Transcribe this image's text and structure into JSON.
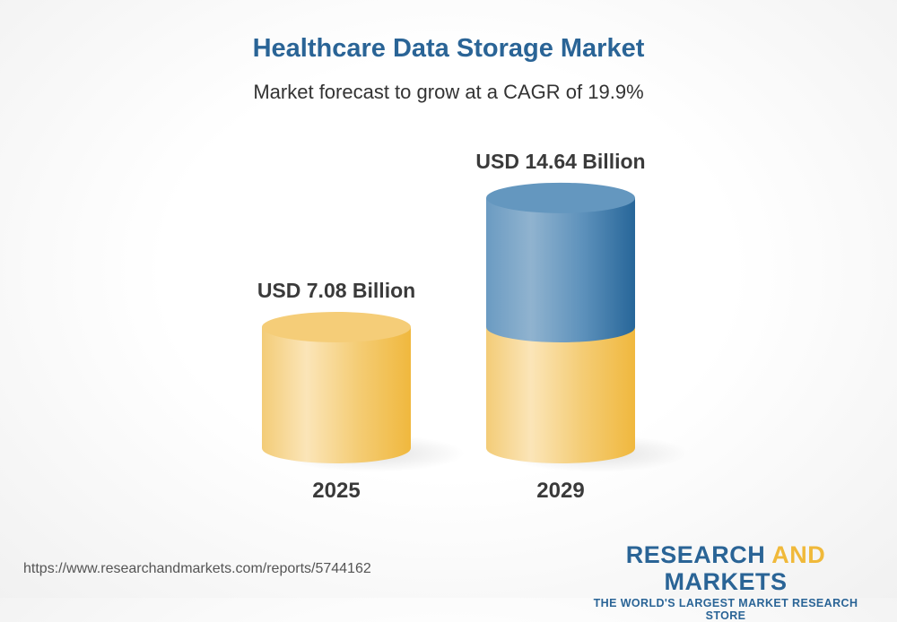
{
  "chart_data": {
    "type": "bar",
    "style": "3d-cylinder",
    "title": "Healthcare Data Storage Market",
    "subtitle": "Market forecast to grow at a CAGR of 19.9%",
    "categories": [
      "2025",
      "2029"
    ],
    "values": [
      7.08,
      14.64
    ],
    "data_labels": [
      "USD 7.08 Billion",
      "USD 14.64 Billion"
    ],
    "unit": "USD Billion",
    "colors": {
      "base": "#f2bd45",
      "growth": "#2b6a9e"
    },
    "grid": false
  },
  "footer": {
    "url": "https://www.researchandmarkets.com/reports/5744162",
    "logo_part1": "RESEARCH ",
    "logo_part2": "AND",
    "logo_part3": " MARKETS",
    "tagline": "THE WORLD'S LARGEST MARKET RESEARCH STORE"
  }
}
